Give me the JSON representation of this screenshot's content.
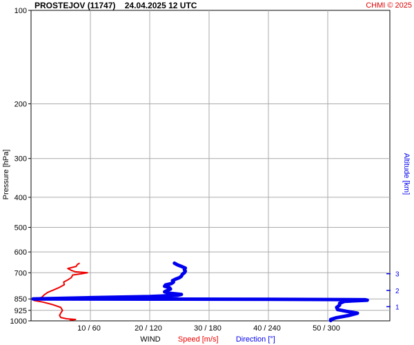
{
  "chart_data": {
    "type": "line",
    "title": "PROSTEJOV (11747)    24.04.2025 12 UTC",
    "credit": "CHMI © 2025",
    "ylabel": "Pressure [hPa]",
    "ylabel_right": "Altitude [km]",
    "y_scale": "log",
    "ylim": [
      1000,
      100
    ],
    "y_ticks": [
      100,
      200,
      300,
      400,
      500,
      600,
      700,
      850,
      925,
      1000
    ],
    "x_ticks": [
      "10 / 60",
      "20 / 120",
      "30 / 180",
      "40 / 240",
      "50 / 300"
    ],
    "x_label_parts": [
      "WIND",
      "Speed [m/s]",
      "Direction [°]"
    ],
    "altitude_ticks": [
      {
        "label": "1",
        "p": 900
      },
      {
        "label": "2",
        "p": 798
      },
      {
        "label": "3",
        "p": 705
      }
    ],
    "grid": true,
    "colors": {
      "speed": "#ee0000",
      "direction": "#0000ee",
      "credit": "#dd0000",
      "grid": "#aaaaaa"
    },
    "series": [
      {
        "name": "Speed [m/s]",
        "unit": "m/s",
        "points": [
          {
            "p": 995,
            "v": 6.5
          },
          {
            "p": 990,
            "v": 7.5
          },
          {
            "p": 985,
            "v": 6.0
          },
          {
            "p": 975,
            "v": 5.0
          },
          {
            "p": 960,
            "v": 4.8
          },
          {
            "p": 945,
            "v": 5.0
          },
          {
            "p": 925,
            "v": 5.3
          },
          {
            "p": 905,
            "v": 5.0
          },
          {
            "p": 885,
            "v": 3.5
          },
          {
            "p": 870,
            "v": 2.0
          },
          {
            "p": 860,
            "v": 0.5
          },
          {
            "p": 852,
            "v": 0.3
          },
          {
            "p": 848,
            "v": 1.0
          },
          {
            "p": 840,
            "v": 1.8
          },
          {
            "p": 825,
            "v": 2.2
          },
          {
            "p": 810,
            "v": 2.8
          },
          {
            "p": 795,
            "v": 3.8
          },
          {
            "p": 780,
            "v": 4.8
          },
          {
            "p": 765,
            "v": 5.6
          },
          {
            "p": 750,
            "v": 5.5
          },
          {
            "p": 738,
            "v": 6.2
          },
          {
            "p": 725,
            "v": 6.8
          },
          {
            "p": 712,
            "v": 7.0
          },
          {
            "p": 705,
            "v": 8.5
          },
          {
            "p": 700,
            "v": 9.5
          },
          {
            "p": 695,
            "v": 7.5
          },
          {
            "p": 688,
            "v": 6.8
          },
          {
            "p": 678,
            "v": 6.2
          },
          {
            "p": 668,
            "v": 7.6
          },
          {
            "p": 658,
            "v": 7.8
          },
          {
            "p": 652,
            "v": 8.2
          }
        ]
      },
      {
        "name": "Direction [°]",
        "unit": "deg",
        "points": [
          {
            "p": 998,
            "v": 303
          },
          {
            "p": 990,
            "v": 303
          },
          {
            "p": 978,
            "v": 308
          },
          {
            "p": 960,
            "v": 322
          },
          {
            "p": 945,
            "v": 330
          },
          {
            "p": 932,
            "v": 319
          },
          {
            "p": 920,
            "v": 310
          },
          {
            "p": 905,
            "v": 309
          },
          {
            "p": 890,
            "v": 312
          },
          {
            "p": 878,
            "v": 312
          },
          {
            "p": 865,
            "v": 317
          },
          {
            "p": 858,
            "v": 340
          },
          {
            "p": 855,
            "v": 338
          },
          {
            "p": 852,
            "v": 240
          },
          {
            "p": 851,
            "v": 120
          },
          {
            "p": 850,
            "v": 2
          },
          {
            "p": 842,
            "v": 60
          },
          {
            "p": 835,
            "v": 120
          },
          {
            "p": 828,
            "v": 148
          },
          {
            "p": 822,
            "v": 152
          },
          {
            "p": 814,
            "v": 139
          },
          {
            "p": 806,
            "v": 135
          },
          {
            "p": 798,
            "v": 138
          },
          {
            "p": 790,
            "v": 141
          },
          {
            "p": 782,
            "v": 140
          },
          {
            "p": 774,
            "v": 135
          },
          {
            "p": 766,
            "v": 136
          },
          {
            "p": 758,
            "v": 142
          },
          {
            "p": 750,
            "v": 144
          },
          {
            "p": 742,
            "v": 143
          },
          {
            "p": 734,
            "v": 146
          },
          {
            "p": 726,
            "v": 150
          },
          {
            "p": 718,
            "v": 152
          },
          {
            "p": 708,
            "v": 153
          },
          {
            "p": 700,
            "v": 155
          },
          {
            "p": 692,
            "v": 156
          },
          {
            "p": 684,
            "v": 155
          },
          {
            "p": 676,
            "v": 156
          },
          {
            "p": 668,
            "v": 152
          },
          {
            "p": 660,
            "v": 148
          },
          {
            "p": 652,
            "v": 145
          }
        ]
      }
    ]
  }
}
